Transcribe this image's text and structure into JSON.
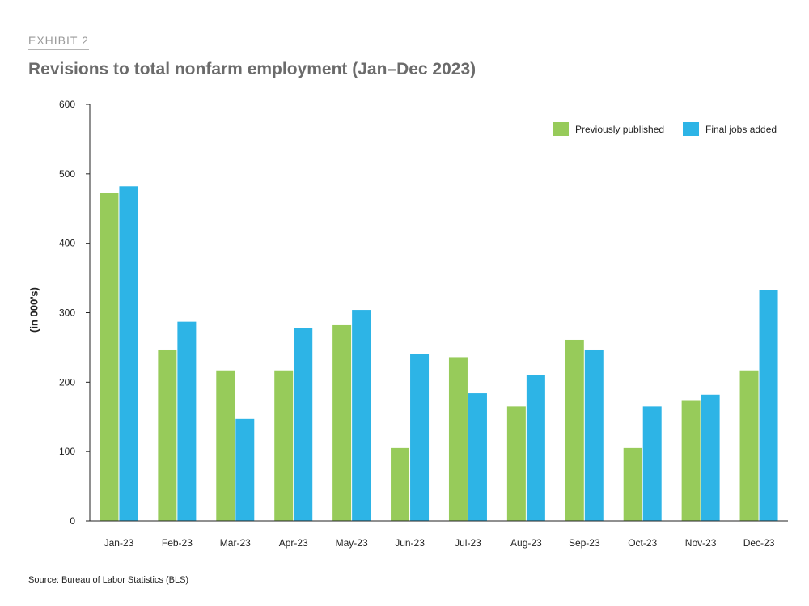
{
  "exhibit_label": "EXHIBIT 2",
  "source": "Source: Bureau of Labor Statistics (BLS)",
  "colors": {
    "previously_published": "#97cb5a",
    "final_jobs_added": "#2db4e6"
  },
  "chart_data": {
    "type": "bar",
    "title": "Revisions to total nonfarm employment (Jan–Dec 2023)",
    "xlabel": "",
    "ylabel": "(in 000’s)",
    "ylim": [
      0,
      600
    ],
    "yticks": [
      0,
      100,
      200,
      300,
      400,
      500,
      600
    ],
    "legend_position": "top-right",
    "categories": [
      "Jan-23",
      "Feb-23",
      "Mar-23",
      "Apr-23",
      "May-23",
      "Jun-23",
      "Jul-23",
      "Aug-23",
      "Sep-23",
      "Oct-23",
      "Nov-23",
      "Dec-23"
    ],
    "series": [
      {
        "name": "Previously published",
        "values": [
          472,
          247,
          217,
          217,
          282,
          105,
          236,
          165,
          261,
          105,
          173,
          217
        ]
      },
      {
        "name": "Final jobs added",
        "values": [
          482,
          287,
          147,
          278,
          304,
          240,
          184,
          210,
          247,
          165,
          182,
          333
        ]
      }
    ]
  }
}
